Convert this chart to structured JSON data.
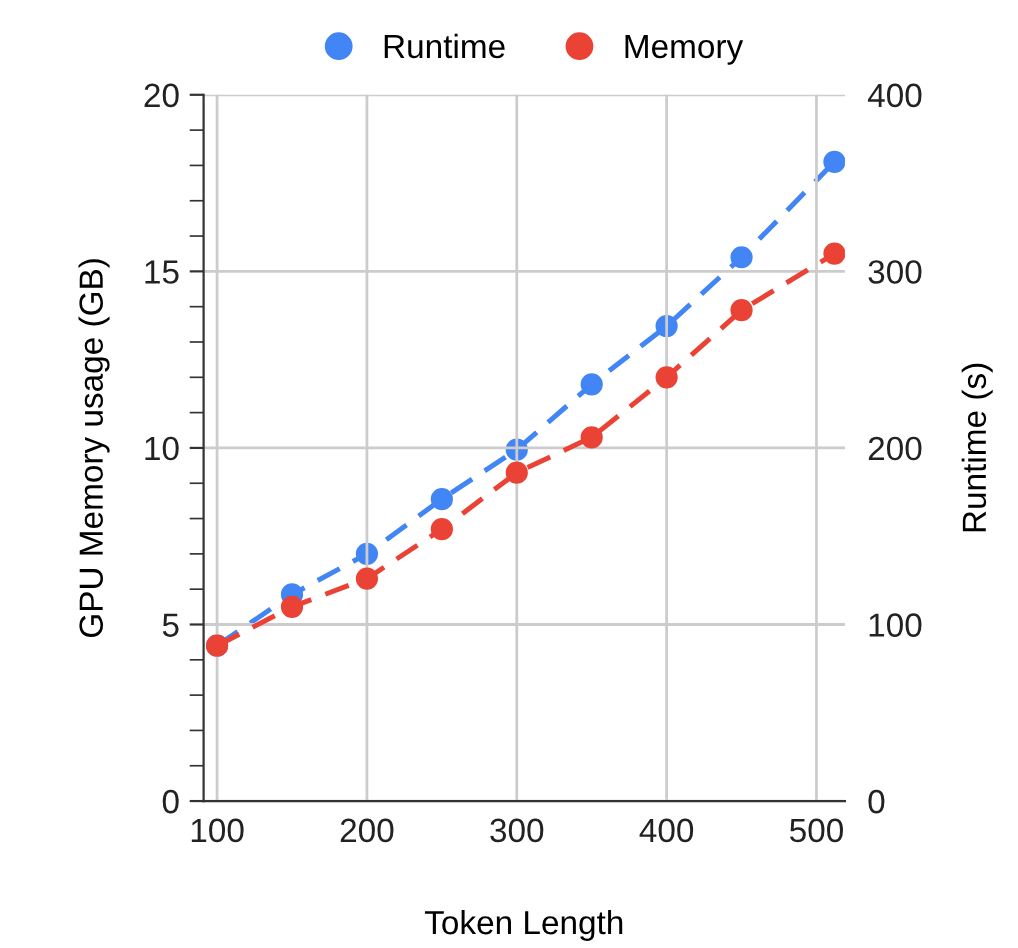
{
  "chart_data": {
    "type": "line",
    "xlabel": "Token Length",
    "ylabel": "GPU Memory usage (GB)",
    "y2label": "Runtime (s)",
    "x": [
      100,
      150,
      200,
      250,
      300,
      350,
      400,
      450,
      512
    ],
    "series": [
      {
        "name": "Runtime",
        "color": "#4285f4",
        "axis": "y2",
        "values": [
          88,
          117,
          140,
          171,
          199,
          236,
          269,
          308,
          362
        ]
      },
      {
        "name": "Memory",
        "color": "#ea4335",
        "values": [
          4.4,
          5.5,
          6.3,
          7.7,
          9.3,
          10.3,
          12.0,
          13.9,
          15.5
        ]
      }
    ],
    "xlim": [
      91,
      519
    ],
    "xticks": [
      100,
      200,
      300,
      400,
      500
    ],
    "ylim": [
      0,
      20
    ],
    "yticks": [
      0,
      5,
      10,
      15,
      20
    ],
    "y2lim": [
      0,
      400
    ],
    "y2ticks": [
      0,
      100,
      200,
      300,
      400
    ],
    "grid": true,
    "legend": "top",
    "marker": "circle",
    "line_style": "dashed"
  }
}
